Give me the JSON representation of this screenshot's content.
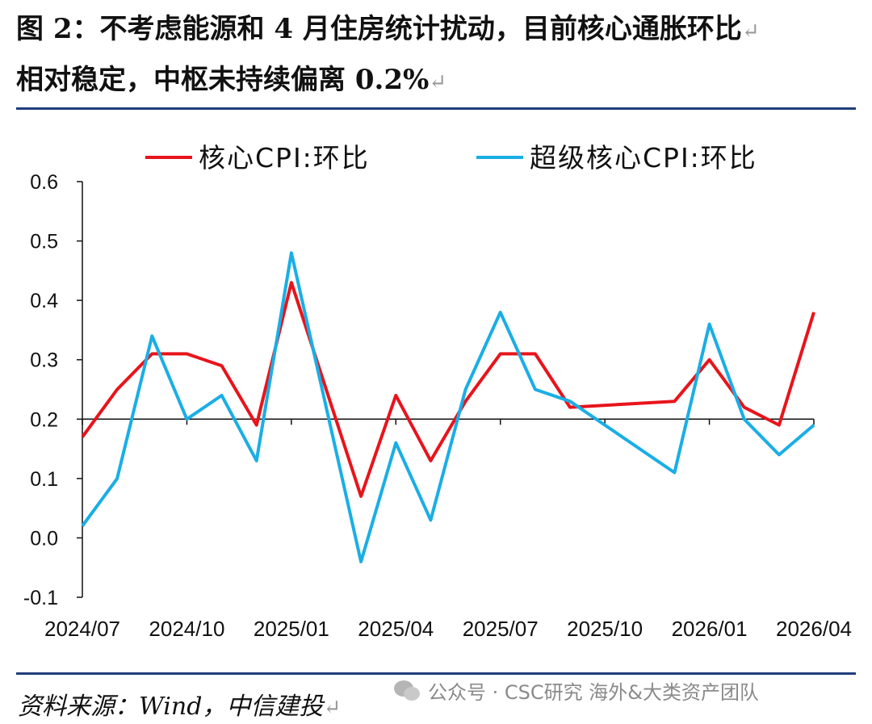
{
  "title": {
    "line1": "图 2：不考虑能源和 4 月住房统计扰动，目前核心通胀环比",
    "line2": "相对稳定，中枢未持续偏离 0.2%",
    "return_mark": "↵"
  },
  "source": {
    "text": "资料来源：Wind，中信建投"
  },
  "watermark": {
    "text": "公众号 · CSC研究 海外&大类资产团队",
    "icon": "wechat-icon"
  },
  "colors": {
    "core": "#e8141b",
    "supercore": "#1aaee5",
    "rule": "#1f3d7a"
  },
  "chart_data": {
    "type": "line",
    "legend_position": "top",
    "grid": false,
    "ylim": [
      -0.1,
      0.6
    ],
    "yticks": [
      "0.6",
      "0.5",
      "0.4",
      "0.3",
      "0.2",
      "0.1",
      "0.0",
      "-0.1"
    ],
    "yticks_values": [
      0.6,
      0.5,
      0.4,
      0.3,
      0.2,
      0.1,
      0.0,
      -0.1
    ],
    "x_baseline": 0.2,
    "x": [
      "2024/07",
      "2024/08",
      "2024/09",
      "2024/10",
      "2024/11",
      "2024/12",
      "2025/01",
      "2025/02",
      "2025/03",
      "2025/04",
      "2025/05",
      "2025/06",
      "2025/07",
      "2025/08",
      "2025/09",
      "2025/10",
      "2025/11",
      "2025/12",
      "2026/01",
      "2026/02",
      "2026/03",
      "2026/04"
    ],
    "xtick_labels": [
      "2024/07",
      "2024/10",
      "2025/01",
      "2025/04",
      "2025/07",
      "2025/10",
      "2026/01",
      "2026/04"
    ],
    "xtick_indices": [
      0,
      3,
      6,
      9,
      12,
      15,
      18,
      21
    ],
    "series": [
      {
        "name": "核心CPI:环比",
        "color": "#e8141b",
        "values": [
          0.17,
          0.25,
          0.31,
          0.31,
          0.29,
          0.19,
          0.43,
          null,
          0.07,
          0.24,
          0.13,
          0.23,
          0.31,
          0.31,
          0.22,
          null,
          null,
          0.23,
          0.3,
          0.22,
          0.19,
          0.38
        ]
      },
      {
        "name": "超级核心CPI:环比",
        "color": "#1aaee5",
        "values": [
          0.02,
          0.1,
          0.34,
          0.2,
          0.24,
          0.13,
          0.48,
          null,
          -0.04,
          0.16,
          0.03,
          0.25,
          0.38,
          0.25,
          0.23,
          null,
          null,
          0.11,
          0.36,
          0.2,
          0.14,
          0.19
        ]
      }
    ]
  }
}
